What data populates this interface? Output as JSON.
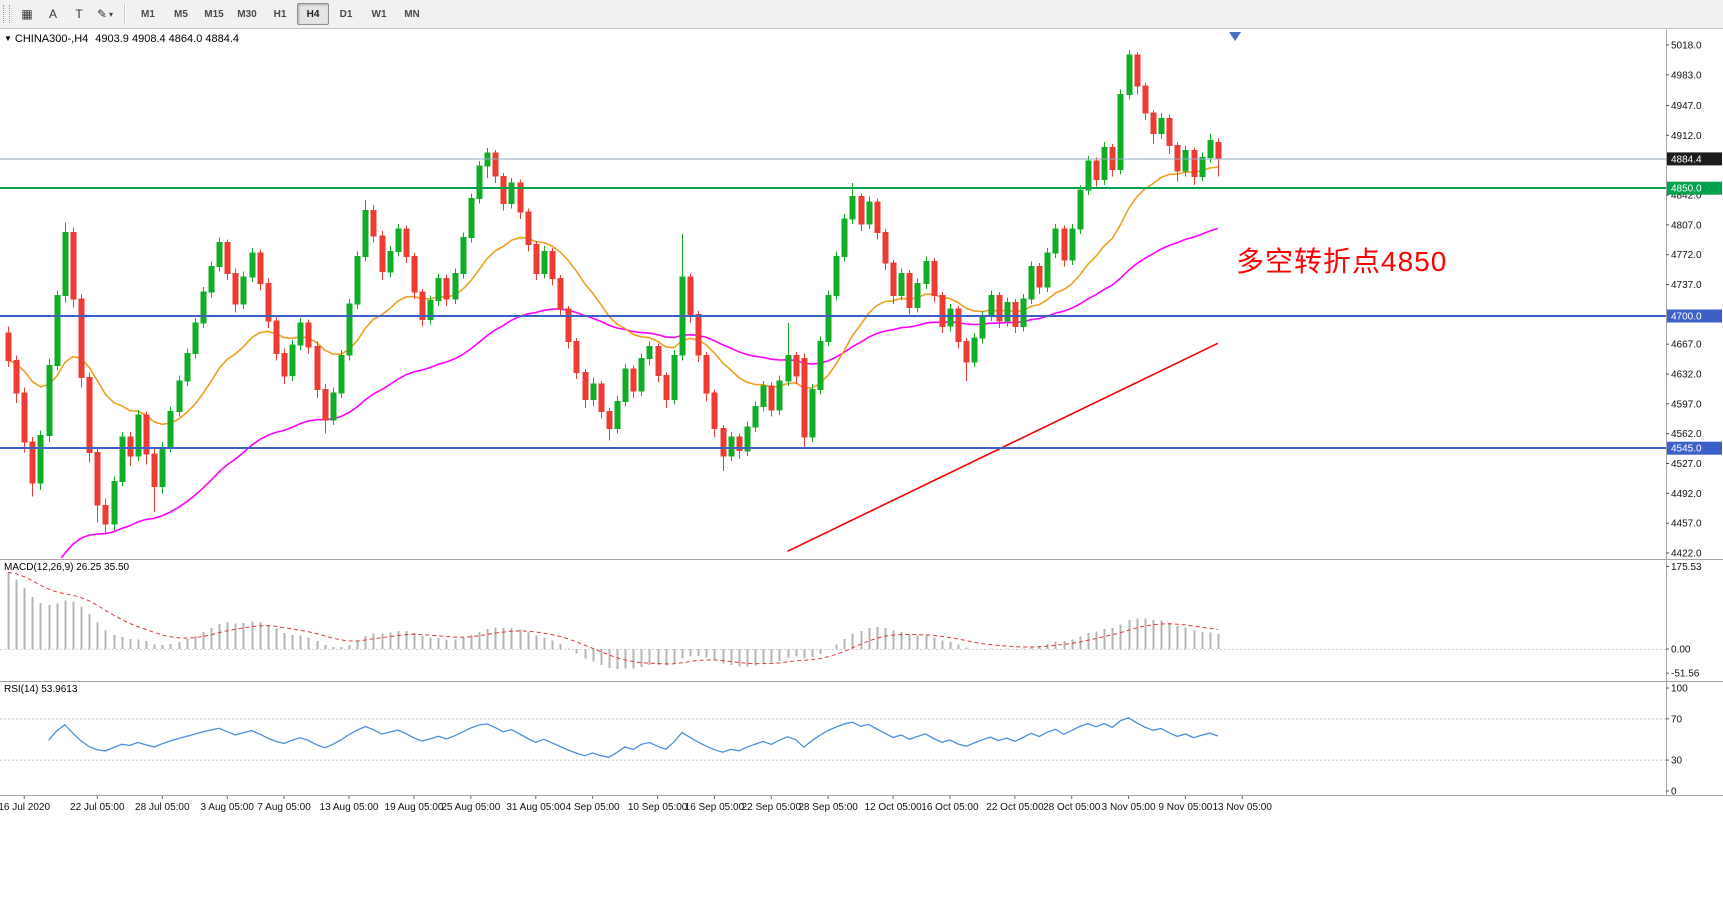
{
  "toolbar": {
    "tools": [
      {
        "id": "charts",
        "glyph": "▦"
      },
      {
        "id": "cursor",
        "glyph": "A"
      },
      {
        "id": "text-tool",
        "glyph": "T"
      },
      {
        "id": "drawing-tools",
        "glyph": "✎"
      }
    ],
    "caret": "▾",
    "timeframes": [
      "M1",
      "M5",
      "M15",
      "M30",
      "H1",
      "H4",
      "D1",
      "W1",
      "MN"
    ],
    "active": "H4"
  },
  "quote_header": {
    "expander": "▼",
    "symbol": "CHINA300-,H4",
    "ohlc": "4903.9 4908.4 4864.0 4884.4"
  },
  "panels": {
    "macd_label": "MACD(12,26,9) 26.25 35.50",
    "rsi_label": "RSI(14) 53.9613"
  },
  "annotation": {
    "text": "多空转折点4850",
    "color": "#ff0000"
  },
  "chart_data": {
    "type": "candlestick",
    "symbol": "CHINA300-",
    "timeframe": "H4",
    "up_color": "#0fae26",
    "down_color": "#ee3b33",
    "ohlc": [
      [
        4680,
        4688,
        4640,
        4648
      ],
      [
        4648,
        4654,
        4598,
        4610
      ],
      [
        4610,
        4616,
        4540,
        4552
      ],
      [
        4552,
        4558,
        4488,
        4504
      ],
      [
        4504,
        4566,
        4496,
        4560
      ],
      [
        4560,
        4650,
        4552,
        4642
      ],
      [
        4642,
        4730,
        4636,
        4724
      ],
      [
        4724,
        4810,
        4716,
        4798
      ],
      [
        4798,
        4804,
        4710,
        4720
      ],
      [
        4720,
        4726,
        4616,
        4628
      ],
      [
        4628,
        4634,
        4528,
        4540
      ],
      [
        4540,
        4546,
        4458,
        4478
      ],
      [
        4478,
        4486,
        4444,
        4456
      ],
      [
        4456,
        4512,
        4448,
        4506
      ],
      [
        4506,
        4564,
        4500,
        4558
      ],
      [
        4558,
        4564,
        4524,
        4536
      ],
      [
        4536,
        4590,
        4530,
        4584
      ],
      [
        4584,
        4588,
        4526,
        4538
      ],
      [
        4538,
        4544,
        4470,
        4500
      ],
      [
        4500,
        4552,
        4492,
        4546
      ],
      [
        4546,
        4594,
        4540,
        4588
      ],
      [
        4588,
        4630,
        4582,
        4624
      ],
      [
        4624,
        4662,
        4618,
        4656
      ],
      [
        4656,
        4698,
        4650,
        4692
      ],
      [
        4692,
        4734,
        4686,
        4728
      ],
      [
        4728,
        4764,
        4722,
        4758
      ],
      [
        4758,
        4792,
        4752,
        4786
      ],
      [
        4786,
        4790,
        4742,
        4750
      ],
      [
        4750,
        4756,
        4704,
        4714
      ],
      [
        4714,
        4752,
        4708,
        4746
      ],
      [
        4746,
        4780,
        4740,
        4774
      ],
      [
        4774,
        4778,
        4730,
        4738
      ],
      [
        4738,
        4744,
        4686,
        4694
      ],
      [
        4694,
        4700,
        4648,
        4656
      ],
      [
        4656,
        4662,
        4620,
        4630
      ],
      [
        4630,
        4672,
        4624,
        4666
      ],
      [
        4666,
        4698,
        4660,
        4692
      ],
      [
        4692,
        4696,
        4656,
        4664
      ],
      [
        4664,
        4670,
        4604,
        4614
      ],
      [
        4614,
        4620,
        4562,
        4578
      ],
      [
        4578,
        4616,
        4572,
        4610
      ],
      [
        4610,
        4660,
        4604,
        4654
      ],
      [
        4654,
        4720,
        4648,
        4714
      ],
      [
        4714,
        4776,
        4708,
        4770
      ],
      [
        4770,
        4836,
        4764,
        4824
      ],
      [
        4824,
        4830,
        4786,
        4794
      ],
      [
        4794,
        4800,
        4742,
        4752
      ],
      [
        4752,
        4782,
        4746,
        4776
      ],
      [
        4776,
        4808,
        4770,
        4802
      ],
      [
        4802,
        4806,
        4762,
        4770
      ],
      [
        4770,
        4774,
        4720,
        4728
      ],
      [
        4728,
        4732,
        4688,
        4696
      ],
      [
        4696,
        4724,
        4690,
        4718
      ],
      [
        4718,
        4750,
        4712,
        4744
      ],
      [
        4744,
        4748,
        4712,
        4720
      ],
      [
        4720,
        4756,
        4714,
        4750
      ],
      [
        4750,
        4798,
        4744,
        4792
      ],
      [
        4792,
        4844,
        4786,
        4838
      ],
      [
        4838,
        4882,
        4832,
        4876
      ],
      [
        4876,
        4897,
        4862,
        4891
      ],
      [
        4891,
        4895,
        4856,
        4864
      ],
      [
        4864,
        4868,
        4824,
        4832
      ],
      [
        4832,
        4862,
        4826,
        4856
      ],
      [
        4856,
        4860,
        4814,
        4822
      ],
      [
        4822,
        4826,
        4776,
        4784
      ],
      [
        4784,
        4788,
        4742,
        4750
      ],
      [
        4750,
        4782,
        4744,
        4776
      ],
      [
        4776,
        4780,
        4736,
        4744
      ],
      [
        4744,
        4748,
        4700,
        4708
      ],
      [
        4708,
        4712,
        4662,
        4670
      ],
      [
        4670,
        4674,
        4626,
        4634
      ],
      [
        4634,
        4638,
        4592,
        4602
      ],
      [
        4602,
        4628,
        4594,
        4620
      ],
      [
        4620,
        4624,
        4580,
        4588
      ],
      [
        4588,
        4592,
        4554,
        4568
      ],
      [
        4568,
        4606,
        4562,
        4600
      ],
      [
        4600,
        4644,
        4594,
        4638
      ],
      [
        4638,
        4642,
        4604,
        4612
      ],
      [
        4612,
        4656,
        4606,
        4650
      ],
      [
        4650,
        4670,
        4642,
        4664
      ],
      [
        4664,
        4668,
        4622,
        4630
      ],
      [
        4630,
        4634,
        4592,
        4602
      ],
      [
        4602,
        4660,
        4596,
        4654
      ],
      [
        4654,
        4796,
        4648,
        4746
      ],
      [
        4746,
        4750,
        4692,
        4702
      ],
      [
        4702,
        4706,
        4646,
        4654
      ],
      [
        4654,
        4658,
        4600,
        4610
      ],
      [
        4610,
        4614,
        4558,
        4568
      ],
      [
        4568,
        4572,
        4518,
        4536
      ],
      [
        4536,
        4564,
        4530,
        4558
      ],
      [
        4558,
        4562,
        4532,
        4542
      ],
      [
        4542,
        4576,
        4536,
        4570
      ],
      [
        4570,
        4600,
        4564,
        4594
      ],
      [
        4594,
        4624,
        4588,
        4618
      ],
      [
        4618,
        4622,
        4582,
        4590
      ],
      [
        4590,
        4630,
        4584,
        4624
      ],
      [
        4624,
        4692,
        4618,
        4654
      ],
      [
        4654,
        4658,
        4620,
        4630
      ],
      [
        4650,
        4656,
        4544,
        4558
      ],
      [
        4558,
        4620,
        4552,
        4614
      ],
      [
        4614,
        4676,
        4608,
        4670
      ],
      [
        4670,
        4730,
        4664,
        4724
      ],
      [
        4724,
        4776,
        4718,
        4770
      ],
      [
        4770,
        4820,
        4764,
        4814
      ],
      [
        4814,
        4856,
        4808,
        4840
      ],
      [
        4840,
        4844,
        4800,
        4808
      ],
      [
        4808,
        4840,
        4802,
        4834
      ],
      [
        4834,
        4838,
        4790,
        4798
      ],
      [
        4798,
        4802,
        4754,
        4762
      ],
      [
        4762,
        4766,
        4714,
        4724
      ],
      [
        4724,
        4756,
        4718,
        4750
      ],
      [
        4750,
        4754,
        4702,
        4710
      ],
      [
        4710,
        4744,
        4704,
        4738
      ],
      [
        4738,
        4770,
        4732,
        4764
      ],
      [
        4764,
        4768,
        4716,
        4724
      ],
      [
        4724,
        4728,
        4680,
        4688
      ],
      [
        4688,
        4714,
        4682,
        4708
      ],
      [
        4708,
        4712,
        4662,
        4670
      ],
      [
        4670,
        4674,
        4624,
        4646
      ],
      [
        4646,
        4680,
        4640,
        4674
      ],
      [
        4674,
        4706,
        4668,
        4700
      ],
      [
        4700,
        4730,
        4694,
        4724
      ],
      [
        4724,
        4728,
        4686,
        4694
      ],
      [
        4694,
        4722,
        4688,
        4716
      ],
      [
        4716,
        4720,
        4680,
        4688
      ],
      [
        4688,
        4726,
        4682,
        4720
      ],
      [
        4720,
        4764,
        4714,
        4758
      ],
      [
        4758,
        4762,
        4726,
        4734
      ],
      [
        4734,
        4780,
        4728,
        4774
      ],
      [
        4774,
        4808,
        4768,
        4802
      ],
      [
        4802,
        4806,
        4758,
        4766
      ],
      [
        4766,
        4808,
        4760,
        4802
      ],
      [
        4802,
        4854,
        4796,
        4848
      ],
      [
        4848,
        4888,
        4842,
        4882
      ],
      [
        4882,
        4886,
        4852,
        4860
      ],
      [
        4860,
        4904,
        4854,
        4898
      ],
      [
        4898,
        4902,
        4864,
        4872
      ],
      [
        4872,
        4966,
        4866,
        4960
      ],
      [
        4960,
        5012,
        4954,
        5006
      ],
      [
        5006,
        5010,
        4960,
        4970
      ],
      [
        4970,
        4974,
        4930,
        4938
      ],
      [
        4938,
        4942,
        4902,
        4914
      ],
      [
        4914,
        4938,
        4908,
        4932
      ],
      [
        4932,
        4936,
        4890,
        4900
      ],
      [
        4900,
        4904,
        4858,
        4870
      ],
      [
        4870,
        4900,
        4864,
        4894
      ],
      [
        4894,
        4898,
        4854,
        4864
      ],
      [
        4864,
        4892,
        4858,
        4886
      ],
      [
        4886,
        4914,
        4880,
        4906
      ],
      [
        4903.9,
        4908.4,
        4864.0,
        4884.4
      ]
    ],
    "y_axis": {
      "range": [
        4422.0,
        5018.0
      ],
      "ticks": [
        5018.0,
        4983.0,
        4947.0,
        4912.0,
        4842.0,
        4807.0,
        4772.0,
        4737.0,
        4667.0,
        4632.0,
        4597.0,
        4562.0,
        4527.0,
        4492.0,
        4457.0,
        4422.0
      ],
      "badges": [
        {
          "text": "4884.4",
          "price": 4884.4,
          "bg": "#1c1c1c"
        },
        {
          "text": "4850.0",
          "price": 4850.0,
          "bg": "#00a14b"
        },
        {
          "text": "4700.0",
          "price": 4700.0,
          "bg": "#3c5fc8"
        },
        {
          "text": "4545.0",
          "price": 4545.0,
          "bg": "#3c5fc8"
        }
      ]
    },
    "x_axis": {
      "labels": [
        {
          "text": "16 Jul 2020",
          "bar": 2
        },
        {
          "text": "22 Jul 05:00",
          "bar": 11
        },
        {
          "text": "28 Jul 05:00",
          "bar": 19
        },
        {
          "text": "3 Aug 05:00",
          "bar": 27
        },
        {
          "text": "7 Aug 05:00",
          "bar": 34
        },
        {
          "text": "13 Aug 05:00",
          "bar": 42
        },
        {
          "text": "19 Aug 05:00",
          "bar": 50
        },
        {
          "text": "25 Aug 05:00",
          "bar": 57
        },
        {
          "text": "31 Aug 05:00",
          "bar": 65
        },
        {
          "text": "4 Sep 05:00",
          "bar": 72
        },
        {
          "text": "10 Sep 05:00",
          "bar": 80
        },
        {
          "text": "16 Sep 05:00",
          "bar": 87
        },
        {
          "text": "22 Sep 05:00",
          "bar": 94
        },
        {
          "text": "28 Sep 05:00",
          "bar": 101
        },
        {
          "text": "12 Oct 05:00",
          "bar": 109
        },
        {
          "text": "16 Oct 05:00",
          "bar": 116
        },
        {
          "text": "22 Oct 05:00",
          "bar": 124
        },
        {
          "text": "28 Oct 05:00",
          "bar": 131
        },
        {
          "text": "3 Nov 05:00",
          "bar": 138
        },
        {
          "text": "9 Nov 05:00",
          "bar": 145
        },
        {
          "text": "13 Nov 05:00",
          "bar": 152
        }
      ]
    },
    "overlays": {
      "ma_fast": {
        "type": "ema",
        "period": 20,
        "color": "#ef9f1f"
      },
      "ma_slow": {
        "type": "ema",
        "period": 55,
        "color": "#ff00ff",
        "seed": 4350
      },
      "hlines": [
        {
          "price": 4884.4,
          "color": "#94a9bd",
          "width": 1
        },
        {
          "price": 4850.0,
          "color": "#00a14b",
          "width": 2
        },
        {
          "price": 4700.0,
          "color": "#3c5fc8",
          "width": 2
        },
        {
          "price": 4545.0,
          "color": "#3c5fc8",
          "width": 2
        }
      ],
      "trendline": {
        "from": {
          "bar": 96,
          "price": 4424
        },
        "to": {
          "bar": 149,
          "price": 4668
        },
        "color": "#f20000"
      }
    },
    "indicators": [
      {
        "name": "MACD",
        "params": "12,26,9",
        "values": "26.25 35.50",
        "scale": [
          "175.53",
          "0.00",
          "-51.56"
        ],
        "histogram_color": "#b4b4b4",
        "signal_color": "#e03636"
      },
      {
        "name": "RSI",
        "params": "14",
        "value": "53.9613",
        "scale": [
          "100",
          "70",
          "30",
          "0"
        ],
        "levels": [
          70,
          30
        ],
        "line_color": "#4a90d9"
      }
    ]
  }
}
